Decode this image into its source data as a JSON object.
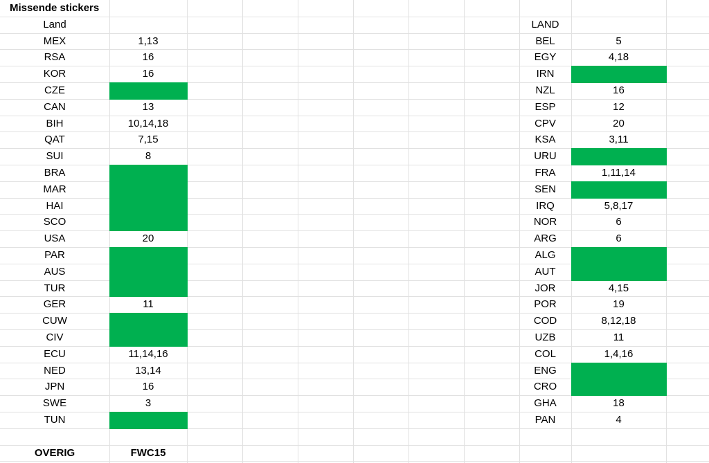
{
  "title": "Missende stickers",
  "left": {
    "header": "Land",
    "rows": [
      [
        "MEX",
        "1,13"
      ],
      [
        "RSA",
        "16"
      ],
      [
        "KOR",
        "16"
      ],
      [
        "CZE",
        null
      ],
      [
        "CAN",
        "13"
      ],
      [
        "BIH",
        "10,14,18"
      ],
      [
        "QAT",
        "7,15"
      ],
      [
        "SUI",
        "8"
      ],
      [
        "BRA",
        null
      ],
      [
        "MAR",
        null
      ],
      [
        "HAI",
        null
      ],
      [
        "SCO",
        null
      ],
      [
        "USA",
        "20"
      ],
      [
        "PAR",
        null
      ],
      [
        "AUS",
        null
      ],
      [
        "TUR",
        null
      ],
      [
        "GER",
        "11"
      ],
      [
        "CUW",
        null
      ],
      [
        "CIV",
        null
      ],
      [
        "ECU",
        "11,14,16"
      ],
      [
        "NED",
        "13,14"
      ],
      [
        "JPN",
        "16"
      ],
      [
        "SWE",
        "3"
      ],
      [
        "TUN",
        null
      ]
    ]
  },
  "right": {
    "header": "LAND",
    "rows": [
      [
        "BEL",
        "5"
      ],
      [
        "EGY",
        "4,18"
      ],
      [
        "IRN",
        null
      ],
      [
        "NZL",
        "16"
      ],
      [
        "ESP",
        "12"
      ],
      [
        "CPV",
        "20"
      ],
      [
        "KSA",
        "3,11"
      ],
      [
        "URU",
        null
      ],
      [
        "FRA",
        "1,11,14"
      ],
      [
        "SEN",
        null
      ],
      [
        "IRQ",
        "5,8,17"
      ],
      [
        "NOR",
        "6"
      ],
      [
        "ARG",
        "6"
      ],
      [
        "ALG",
        null
      ],
      [
        "AUT",
        null
      ],
      [
        "JOR",
        "4,15"
      ],
      [
        "POR",
        "19"
      ],
      [
        "COD",
        "8,12,18"
      ],
      [
        "UZB",
        "11"
      ],
      [
        "COL",
        "1,4,16"
      ],
      [
        "ENG",
        null
      ],
      [
        "CRO",
        null
      ],
      [
        "GHA",
        "18"
      ],
      [
        "PAN",
        "4"
      ]
    ]
  },
  "footer": {
    "label": "OVERIG",
    "code": "FWC15"
  }
}
